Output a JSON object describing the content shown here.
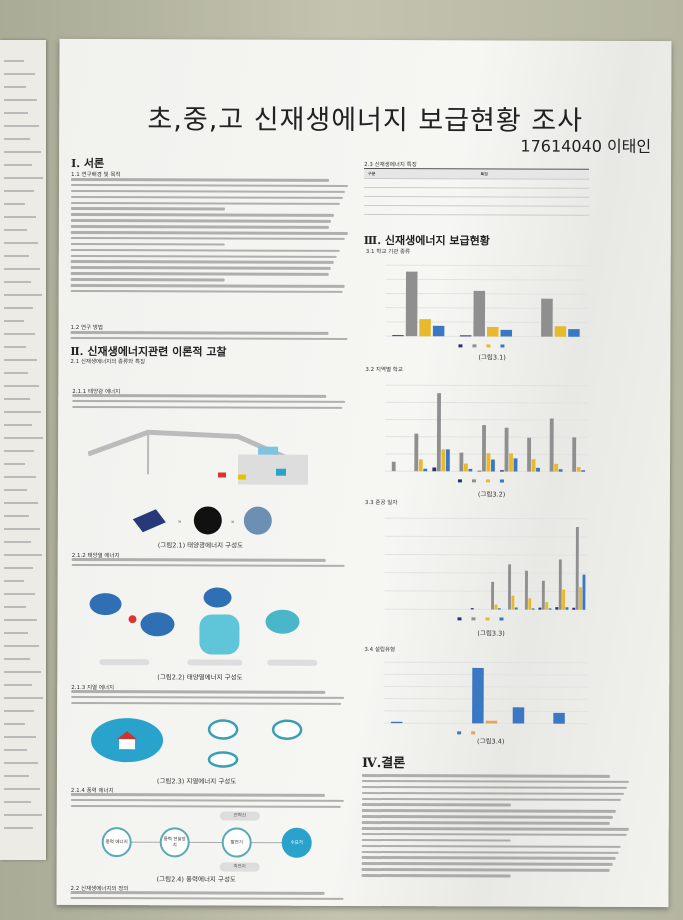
{
  "title": "초,중,고 신재생에너지 보급현황 조사",
  "author": "17614040 이태인",
  "sections": {
    "s1": "Ⅰ. 서론",
    "s1_1": "1.1 연구배경 및 목적",
    "s1_2": "1.2 연구 방법",
    "s2": "Ⅱ. 신재생에너지관련 이론적 고찰",
    "s2_1": "2.1 신재생에너지의 종류와 특징",
    "s2_1_1": "2.1.1 태양광 에너지",
    "s2_1_2": "2.1.2 태양열 에너지",
    "s2_1_3": "2.1.3 지열 에너지",
    "s2_1_4": "2.1.4 풍력 에너지",
    "s2_2": "2.2 신재생에너지의 정의",
    "s2_3": "2.3 신재생에너지 특징",
    "s3": "Ⅲ. 신재생에너지 보급현황",
    "s3_1": "3.1 학교 기관 종류",
    "s3_2": "3.2 지역별 학교",
    "s3_3": "3.3 준공 일자",
    "s3_4": "3.4 설립유형",
    "s4": "Ⅳ.결론"
  },
  "captions": {
    "f21": "(그림2.1) 태양광에너지 구성도",
    "f22": "(그림2.2) 태양열에너지 구성도",
    "f23": "(그림2.3) 지열에너지 구성도",
    "f24": "(그림2.4) 풍력에너지 구성도",
    "f31": "(그림3.1)",
    "f32": "(그림3.2)",
    "f33": "(그림3.3)",
    "f34": "(그림3.4)"
  },
  "table": {
    "headers": [
      "구분",
      "특징"
    ]
  },
  "wind_diagram": {
    "nodes": [
      "풍력 에너지",
      "풍력 전달장치",
      "발전기",
      "수요처"
    ],
    "branches": [
      "전력선",
      "축전지"
    ]
  },
  "colors": {
    "gray": "#8f8f8f",
    "yellow": "#e8b92c",
    "blue": "#3b78c4",
    "navy": "#27336e",
    "orange": "#e9a25a",
    "teal": "#2aa3cc"
  },
  "figures": [
    {
      "type": "bar",
      "groups": 3,
      "series": [
        [
          1,
          1,
          0
        ],
        [
          68,
          48,
          40
        ],
        [
          18,
          10,
          11
        ],
        [
          11,
          7,
          8
        ]
      ]
    },
    {
      "type": "bar",
      "groups": 9,
      "series": [
        [
          0,
          0,
          12,
          0,
          2,
          4,
          0,
          0,
          0
        ],
        [
          30,
          120,
          250,
          60,
          148,
          140,
          108,
          170,
          110
        ],
        [
          0,
          38,
          70,
          25,
          58,
          58,
          40,
          25,
          15
        ],
        [
          0,
          8,
          70,
          8,
          38,
          42,
          12,
          8,
          5
        ]
      ]
    },
    {
      "type": "bar",
      "groups": 12,
      "series": [
        [
          0,
          0,
          0,
          0,
          0,
          5,
          0,
          0,
          0,
          8,
          10,
          8
        ],
        [
          0,
          0,
          0,
          0,
          0,
          0,
          110,
          180,
          155,
          115,
          200,
          330
        ],
        [
          0,
          0,
          0,
          0,
          0,
          0,
          20,
          55,
          45,
          30,
          80,
          90
        ],
        [
          0,
          0,
          0,
          0,
          0,
          0,
          5,
          8,
          5,
          5,
          10,
          140
        ]
      ]
    },
    {
      "type": "bar",
      "groups": 5,
      "series": [
        [
          5,
          0,
          205,
          60,
          40
        ],
        [
          0,
          0,
          10,
          0,
          0
        ]
      ]
    }
  ]
}
